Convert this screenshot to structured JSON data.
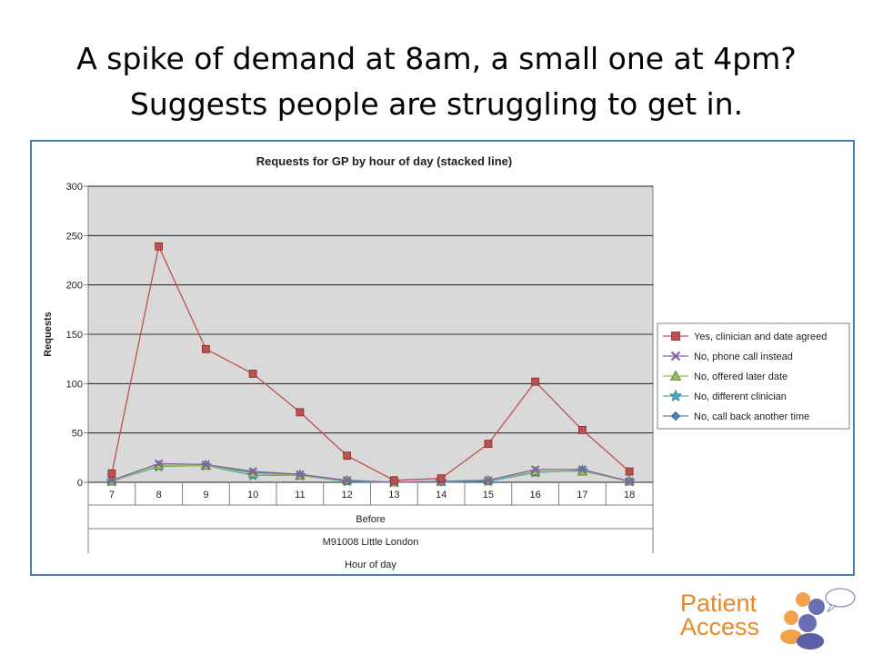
{
  "slide": {
    "title_line1": "A spike of demand at 8am, a small one at 4pm?",
    "title_line2": "Suggests people are struggling to get in."
  },
  "logo": {
    "line1": "Patient",
    "line2": "Access",
    "color": "#e8892c"
  },
  "chart_data": {
    "type": "line",
    "title": "Requests for GP by hour of day (stacked line)",
    "ylabel": "Requests",
    "xlabel": "Hour of day",
    "x_group_labels": [
      "Before",
      "M91008 Little London"
    ],
    "categories": [
      "7",
      "8",
      "9",
      "10",
      "11",
      "12",
      "13",
      "14",
      "15",
      "16",
      "17",
      "18"
    ],
    "ylim": [
      0,
      300
    ],
    "yticks": [
      0,
      50,
      100,
      150,
      200,
      250,
      300
    ],
    "grid": true,
    "plot_background": "#d9d9d9",
    "legend_position": "right",
    "series": [
      {
        "name": "Yes, clinician and date agreed",
        "color": "#c0504d",
        "marker": "square",
        "values": [
          9,
          239,
          135,
          110,
          71,
          27,
          2,
          4,
          39,
          102,
          53,
          11
        ]
      },
      {
        "name": "No, phone call instead",
        "color": "#8064a2",
        "marker": "x",
        "values": [
          2,
          19,
          18,
          11,
          8,
          2,
          0,
          1,
          2,
          13,
          13,
          1
        ]
      },
      {
        "name": "No, offered later date",
        "color": "#9bbb59",
        "marker": "triangle",
        "values": [
          1,
          17,
          17,
          9,
          7,
          2,
          0,
          1,
          2,
          11,
          11,
          1
        ]
      },
      {
        "name": "No, different clinician",
        "color": "#4bacc6",
        "marker": "star",
        "values": [
          1,
          16,
          17,
          7,
          7,
          1,
          0,
          1,
          1,
          10,
          12,
          1
        ]
      },
      {
        "name": "No, call back another time",
        "color": "#4f81bd",
        "marker": "diamond",
        "values": [
          1,
          17,
          17,
          10,
          7,
          1,
          0,
          0,
          1,
          10,
          12,
          1
        ]
      }
    ]
  }
}
